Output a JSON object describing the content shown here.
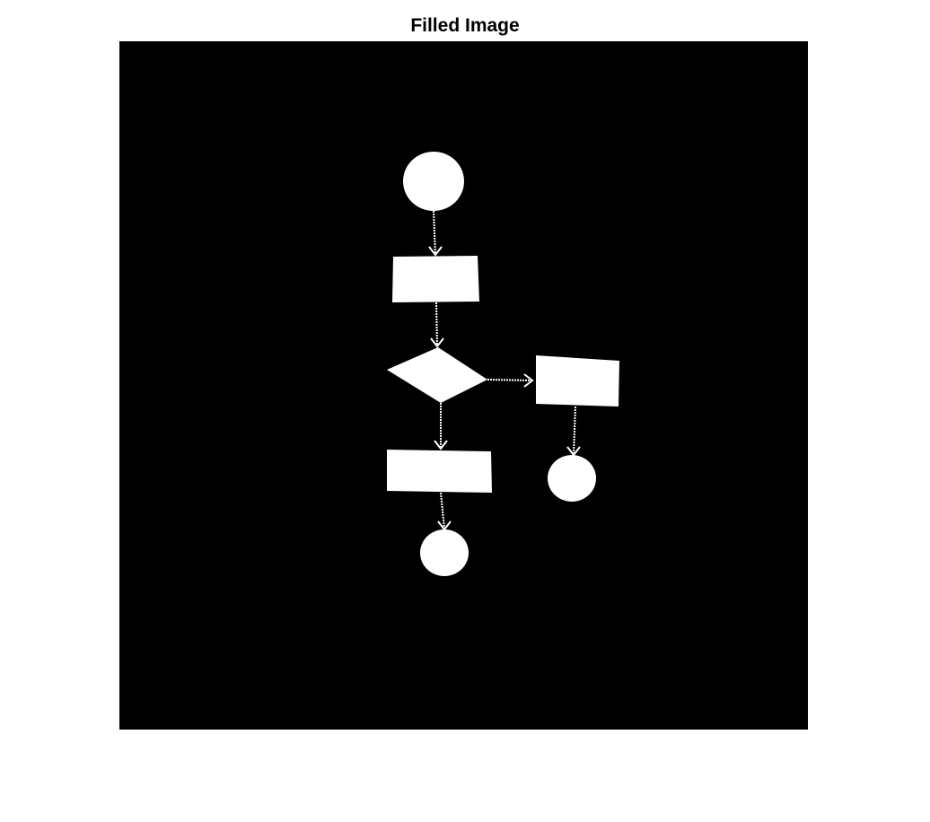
{
  "figure": {
    "title": "Filled Image"
  },
  "image": {
    "background_color": "#000000",
    "foreground_color": "#ffffff"
  }
}
